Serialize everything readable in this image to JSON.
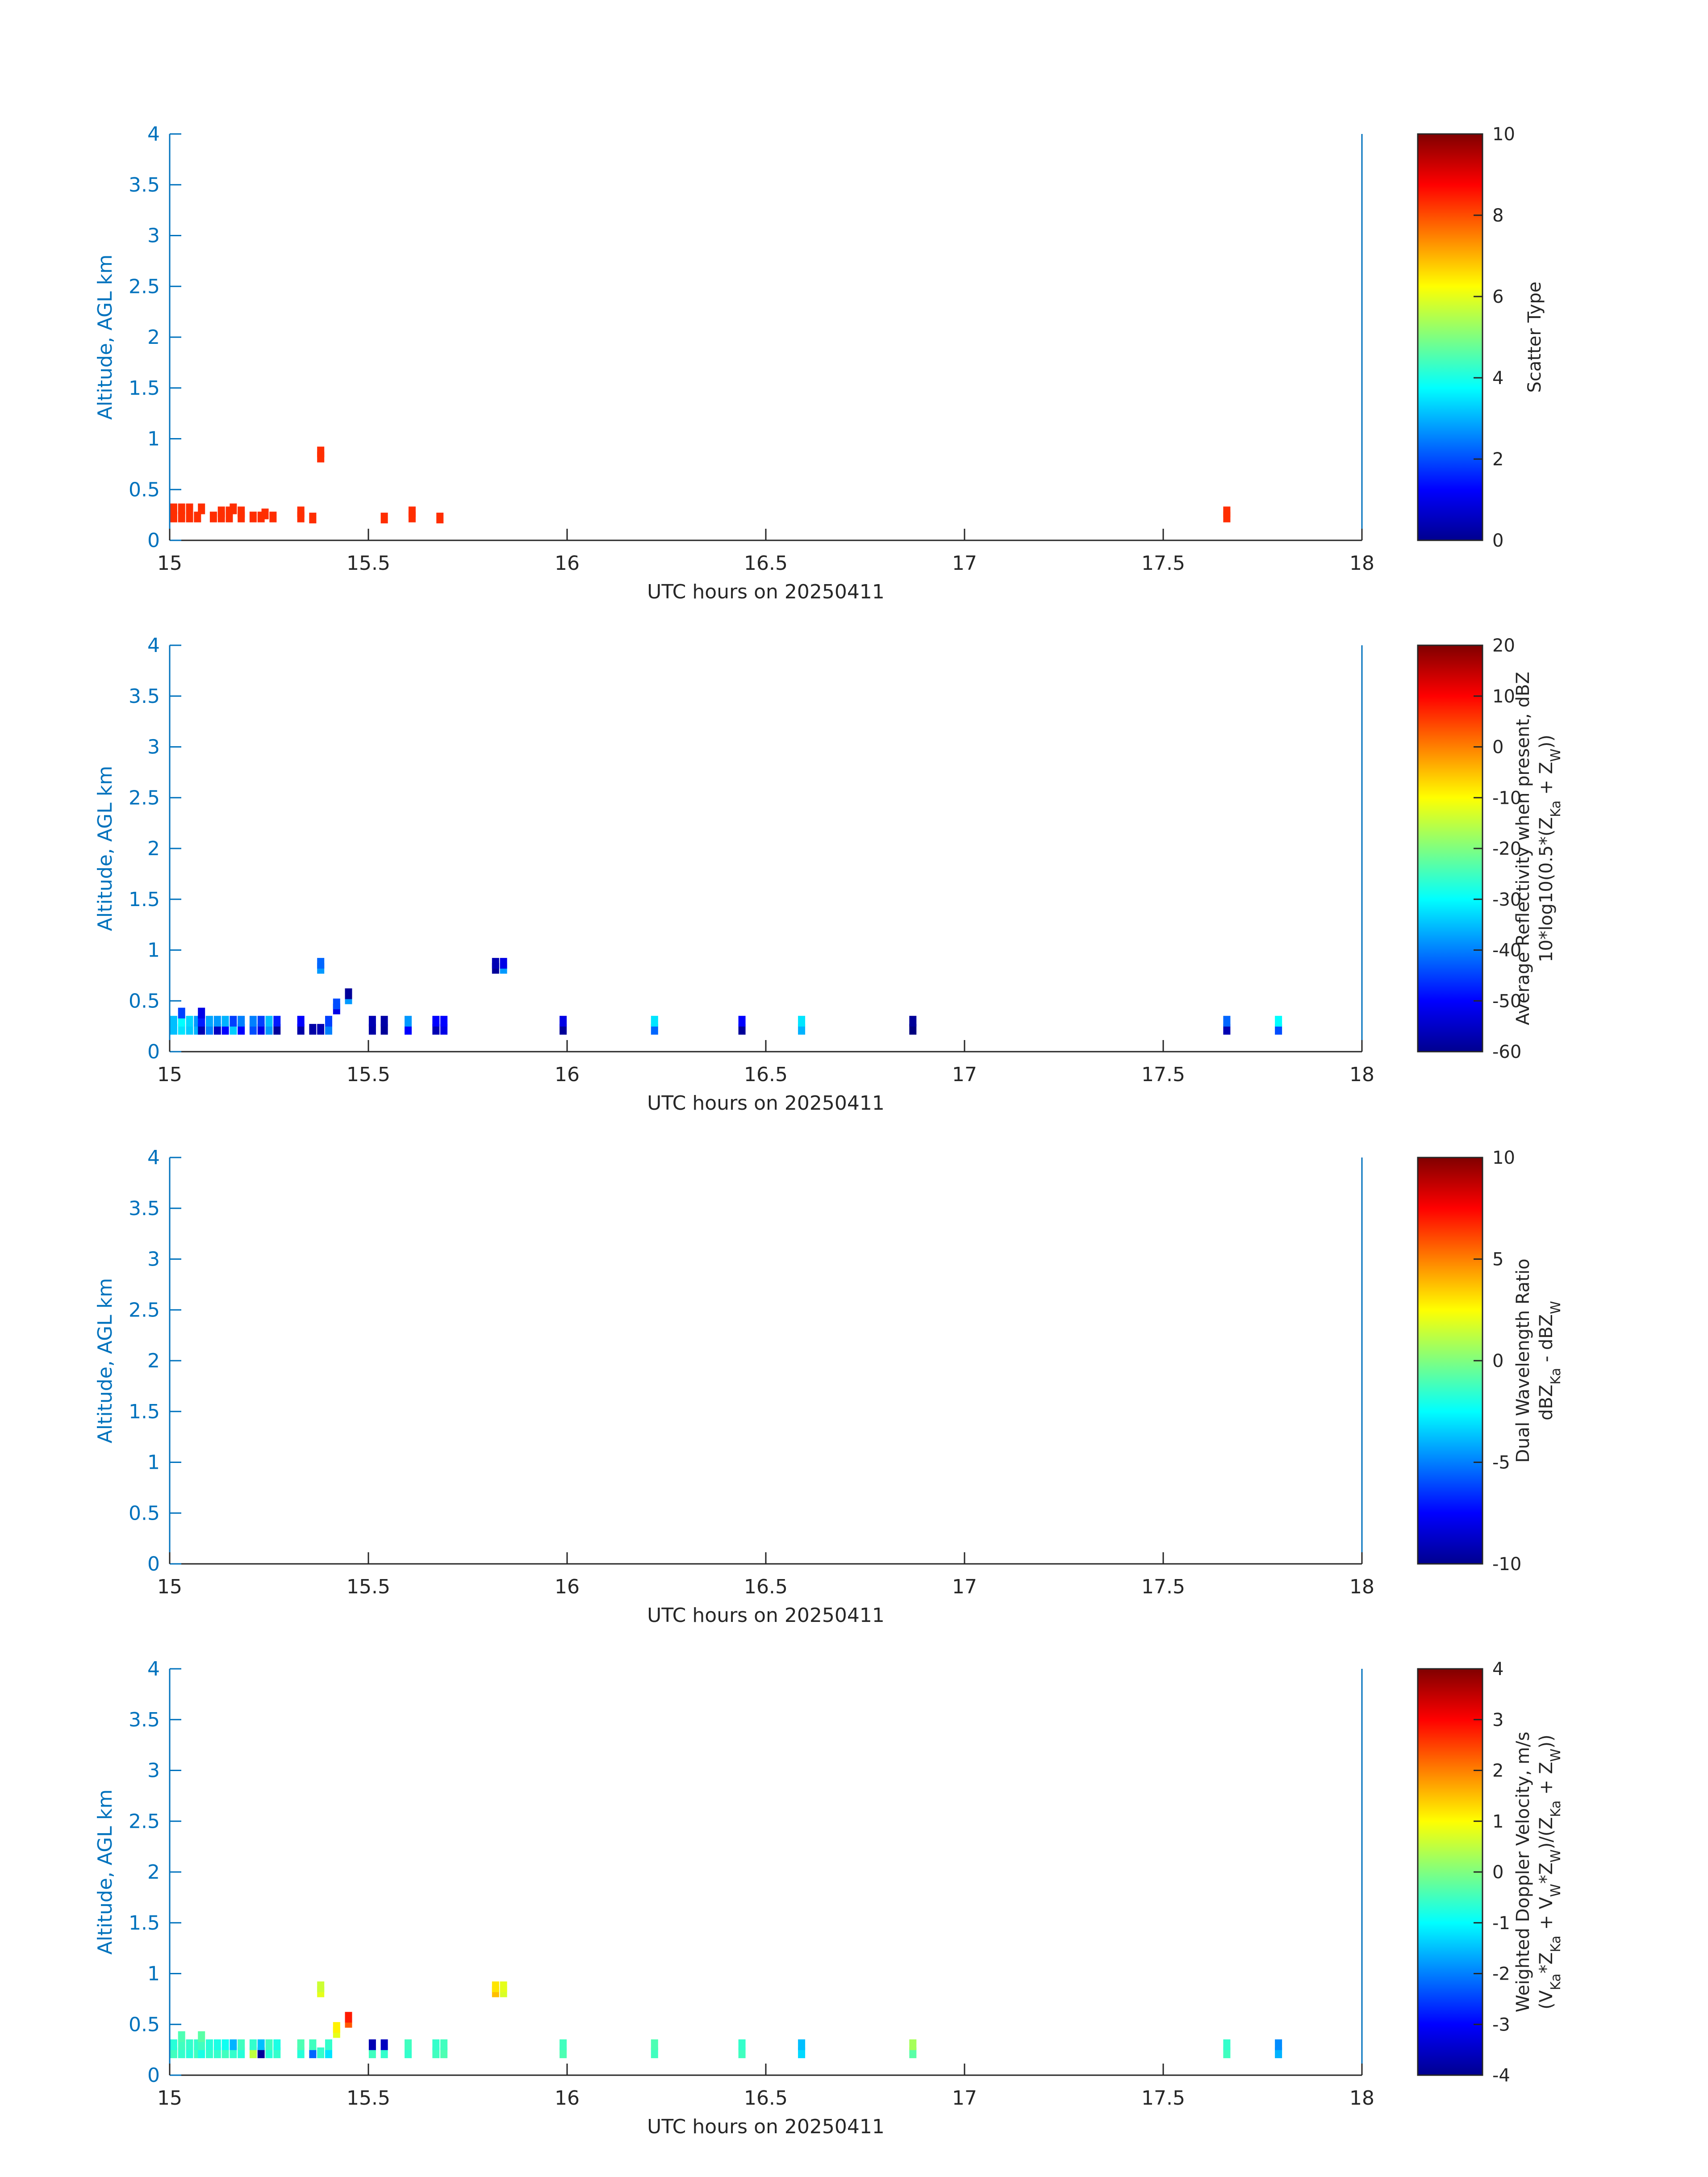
{
  "chart_data": [
    {
      "type": "heatmap",
      "xlabel": "UTC hours on 20250411",
      "ylabel": "Altitude, AGL km",
      "xlim": [
        15,
        18
      ],
      "ylim": [
        0,
        4
      ],
      "xticks": [
        "15",
        "15.5",
        "16",
        "16.5",
        "17",
        "17.5",
        "18"
      ],
      "yticks": [
        "0",
        "0.5",
        "1",
        "1.5",
        "2",
        "2.5",
        "3",
        "3.5",
        "4"
      ],
      "colorbar": {
        "label_lines": [
          "Scatter Type"
        ],
        "clim": [
          0,
          10
        ],
        "ticks": [
          "0",
          "2",
          "4",
          "6",
          "8",
          "10"
        ],
        "colormap": "jet"
      },
      "cells": [
        [
          15.01,
          0.23,
          8.3
        ],
        [
          15.01,
          0.31,
          8.3
        ],
        [
          15.03,
          0.23,
          8.3
        ],
        [
          15.03,
          0.31,
          8.3
        ],
        [
          15.05,
          0.23,
          8.3
        ],
        [
          15.05,
          0.31,
          8.3
        ],
        [
          15.07,
          0.23,
          8.3
        ],
        [
          15.08,
          0.31,
          8.3
        ],
        [
          15.11,
          0.23,
          8.3
        ],
        [
          15.13,
          0.23,
          8.3
        ],
        [
          15.13,
          0.28,
          8.3
        ],
        [
          15.15,
          0.23,
          8.3
        ],
        [
          15.15,
          0.28,
          8.3
        ],
        [
          15.16,
          0.31,
          8.3
        ],
        [
          15.18,
          0.23,
          8.3
        ],
        [
          15.18,
          0.28,
          8.3
        ],
        [
          15.21,
          0.23,
          8.3
        ],
        [
          15.23,
          0.23,
          8.3
        ],
        [
          15.24,
          0.26,
          8.3
        ],
        [
          15.26,
          0.23,
          8.3
        ],
        [
          15.33,
          0.23,
          8.3
        ],
        [
          15.33,
          0.28,
          8.3
        ],
        [
          15.36,
          0.22,
          8.3
        ],
        [
          15.38,
          0.82,
          8.3
        ],
        [
          15.38,
          0.87,
          8.3
        ],
        [
          15.54,
          0.22,
          8.3
        ],
        [
          15.61,
          0.23,
          8.3
        ],
        [
          15.61,
          0.28,
          8.3
        ],
        [
          15.68,
          0.22,
          8.3
        ],
        [
          17.66,
          0.23,
          8.3
        ],
        [
          17.66,
          0.28,
          8.3
        ]
      ]
    },
    {
      "type": "heatmap",
      "xlabel": "UTC hours on 20250411",
      "ylabel": "Altitude, AGL km",
      "xlim": [
        15,
        18
      ],
      "ylim": [
        0,
        4
      ],
      "xticks": [
        "15",
        "15.5",
        "16",
        "16.5",
        "17",
        "17.5",
        "18"
      ],
      "yticks": [
        "0",
        "0.5",
        "1",
        "1.5",
        "2",
        "2.5",
        "3",
        "3.5",
        "4"
      ],
      "colorbar": {
        "label_lines": [
          "Average Reflectivity when present, dBZ",
          "10*log10(0.5*(Z_Ka + Z_W))"
        ],
        "clim": [
          -60,
          20
        ],
        "ticks": [
          "-60",
          "-50",
          "-40",
          "-30",
          "-20",
          "-10",
          "0",
          "10",
          "20"
        ],
        "colormap": "jet"
      },
      "cells": [
        [
          15.01,
          0.22,
          -35
        ],
        [
          15.01,
          0.3,
          -35
        ],
        [
          15.03,
          0.22,
          -32
        ],
        [
          15.03,
          0.3,
          -30
        ],
        [
          15.03,
          0.38,
          -45
        ],
        [
          15.05,
          0.22,
          -34
        ],
        [
          15.05,
          0.3,
          -33
        ],
        [
          15.07,
          0.22,
          -36
        ],
        [
          15.07,
          0.3,
          -38
        ],
        [
          15.08,
          0.22,
          -56
        ],
        [
          15.08,
          0.3,
          -48
        ],
        [
          15.08,
          0.38,
          -52
        ],
        [
          15.1,
          0.22,
          -40
        ],
        [
          15.1,
          0.3,
          -37
        ],
        [
          15.12,
          0.22,
          -55
        ],
        [
          15.12,
          0.3,
          -38
        ],
        [
          15.14,
          0.22,
          -50
        ],
        [
          15.14,
          0.3,
          -36
        ],
        [
          15.16,
          0.22,
          -34
        ],
        [
          15.16,
          0.3,
          -45
        ],
        [
          15.18,
          0.22,
          -50
        ],
        [
          15.18,
          0.3,
          -40
        ],
        [
          15.21,
          0.22,
          -44
        ],
        [
          15.21,
          0.3,
          -40
        ],
        [
          15.23,
          0.22,
          -52
        ],
        [
          15.23,
          0.3,
          -45
        ],
        [
          15.25,
          0.22,
          -38
        ],
        [
          15.25,
          0.3,
          -35
        ],
        [
          15.27,
          0.22,
          -58
        ],
        [
          15.27,
          0.3,
          -48
        ],
        [
          15.33,
          0.22,
          -57
        ],
        [
          15.33,
          0.3,
          -50
        ],
        [
          15.36,
          0.22,
          -57
        ],
        [
          15.38,
          0.22,
          -56
        ],
        [
          15.38,
          0.82,
          -38
        ],
        [
          15.38,
          0.87,
          -42
        ],
        [
          15.4,
          0.22,
          -40
        ],
        [
          15.4,
          0.3,
          -45
        ],
        [
          15.42,
          0.42,
          -52
        ],
        [
          15.42,
          0.47,
          -44
        ],
        [
          15.45,
          0.52,
          -38
        ],
        [
          15.45,
          0.57,
          -58
        ],
        [
          15.51,
          0.22,
          -57
        ],
        [
          15.51,
          0.3,
          -56
        ],
        [
          15.54,
          0.22,
          -58
        ],
        [
          15.54,
          0.3,
          -57
        ],
        [
          15.6,
          0.22,
          -50
        ],
        [
          15.6,
          0.3,
          -38
        ],
        [
          15.67,
          0.22,
          -56
        ],
        [
          15.67,
          0.3,
          -50
        ],
        [
          15.69,
          0.22,
          -52
        ],
        [
          15.69,
          0.3,
          -50
        ],
        [
          15.82,
          0.82,
          -58
        ],
        [
          15.82,
          0.87,
          -56
        ],
        [
          15.84,
          0.82,
          -38
        ],
        [
          15.84,
          0.87,
          -52
        ],
        [
          15.99,
          0.22,
          -58
        ],
        [
          15.99,
          0.3,
          -52
        ],
        [
          16.22,
          0.22,
          -42
        ],
        [
          16.22,
          0.3,
          -32
        ],
        [
          16.44,
          0.22,
          -58
        ],
        [
          16.44,
          0.3,
          -50
        ],
        [
          16.59,
          0.22,
          -36
        ],
        [
          16.59,
          0.3,
          -32
        ],
        [
          16.87,
          0.22,
          -60
        ],
        [
          16.87,
          0.3,
          -58
        ],
        [
          17.66,
          0.22,
          -56
        ],
        [
          17.66,
          0.3,
          -42
        ],
        [
          17.79,
          0.22,
          -44
        ],
        [
          17.79,
          0.3,
          -30
        ]
      ]
    },
    {
      "type": "heatmap",
      "xlabel": "UTC hours on 20250411",
      "ylabel": "Altitude, AGL km",
      "xlim": [
        15,
        18
      ],
      "ylim": [
        0,
        4
      ],
      "xticks": [
        "15",
        "15.5",
        "16",
        "16.5",
        "17",
        "17.5",
        "18"
      ],
      "yticks": [
        "0",
        "0.5",
        "1",
        "1.5",
        "2",
        "2.5",
        "3",
        "3.5",
        "4"
      ],
      "colorbar": {
        "label_lines": [
          "Dual Wavelength Ratio",
          "dBZ_Ka - dBZ_W"
        ],
        "clim": [
          -10,
          10
        ],
        "ticks": [
          "-10",
          "-5",
          "0",
          "5",
          "10"
        ],
        "colormap": "jet"
      },
      "cells": []
    },
    {
      "type": "heatmap",
      "xlabel": "UTC hours on 20250411",
      "ylabel": "Altitude, AGL km",
      "xlim": [
        15,
        18
      ],
      "ylim": [
        0,
        4
      ],
      "xticks": [
        "15",
        "15.5",
        "16",
        "16.5",
        "17",
        "17.5",
        "18"
      ],
      "yticks": [
        "0",
        "0.5",
        "1",
        "1.5",
        "2",
        "2.5",
        "3",
        "3.5",
        "4"
      ],
      "colorbar": {
        "label_lines": [
          "Weighted Doppler Velocity, m/s",
          "(V_Ka*Z_Ka + V_W*Z_W)/(Z_Ka + Z_W))"
        ],
        "clim": [
          -4,
          4
        ],
        "ticks": [
          "-4",
          "-3",
          "-2",
          "-1",
          "0",
          "1",
          "2",
          "3",
          "4"
        ],
        "colormap": "jet"
      },
      "cells": [
        [
          15.01,
          0.22,
          -0.5
        ],
        [
          15.01,
          0.3,
          -0.7
        ],
        [
          15.03,
          0.22,
          -0.6
        ],
        [
          15.03,
          0.3,
          -0.5
        ],
        [
          15.03,
          0.38,
          -0.4
        ],
        [
          15.05,
          0.22,
          -0.7
        ],
        [
          15.05,
          0.3,
          -0.6
        ],
        [
          15.07,
          0.22,
          -0.5
        ],
        [
          15.07,
          0.3,
          -0.6
        ],
        [
          15.08,
          0.22,
          -0.8
        ],
        [
          15.08,
          0.3,
          -0.5
        ],
        [
          15.08,
          0.38,
          -0.3
        ],
        [
          15.1,
          0.22,
          -0.6
        ],
        [
          15.1,
          0.3,
          -0.7
        ],
        [
          15.12,
          0.22,
          -0.6
        ],
        [
          15.12,
          0.3,
          -0.8
        ],
        [
          15.14,
          0.22,
          -0.5
        ],
        [
          15.14,
          0.3,
          -0.9
        ],
        [
          15.16,
          0.22,
          -0.6
        ],
        [
          15.16,
          0.3,
          -1.6
        ],
        [
          15.18,
          0.22,
          -0.7
        ],
        [
          15.18,
          0.3,
          -0.5
        ],
        [
          15.21,
          0.22,
          0.5
        ],
        [
          15.21,
          0.3,
          -0.6
        ],
        [
          15.23,
          0.22,
          -3.8
        ],
        [
          15.23,
          0.3,
          -1.5
        ],
        [
          15.25,
          0.22,
          -0.7
        ],
        [
          15.25,
          0.3,
          -0.5
        ],
        [
          15.27,
          0.22,
          -0.6
        ],
        [
          15.27,
          0.3,
          -0.8
        ],
        [
          15.33,
          0.22,
          -0.7
        ],
        [
          15.33,
          0.3,
          -0.4
        ],
        [
          15.36,
          0.22,
          -2.2
        ],
        [
          15.36,
          0.3,
          -0.5
        ],
        [
          15.38,
          0.22,
          -0.6
        ],
        [
          15.38,
          0.82,
          0.8
        ],
        [
          15.38,
          0.87,
          0.6
        ],
        [
          15.4,
          0.22,
          -1.2
        ],
        [
          15.4,
          0.3,
          -0.6
        ],
        [
          15.42,
          0.42,
          0.8
        ],
        [
          15.42,
          0.47,
          1.1
        ],
        [
          15.45,
          0.52,
          2.3
        ],
        [
          15.45,
          0.57,
          2.8
        ],
        [
          15.51,
          0.22,
          -0.5
        ],
        [
          15.51,
          0.3,
          -3.6
        ],
        [
          15.54,
          0.22,
          -0.6
        ],
        [
          15.54,
          0.3,
          -3.5
        ],
        [
          15.6,
          0.22,
          -0.6
        ],
        [
          15.6,
          0.3,
          -0.5
        ],
        [
          15.67,
          0.22,
          -0.5
        ],
        [
          15.67,
          0.3,
          -0.6
        ],
        [
          15.69,
          0.22,
          -0.4
        ],
        [
          15.69,
          0.3,
          -0.5
        ],
        [
          15.82,
          0.82,
          1.5
        ],
        [
          15.82,
          0.87,
          1.2
        ],
        [
          15.84,
          0.82,
          0.7
        ],
        [
          15.84,
          0.87,
          0.8
        ],
        [
          15.99,
          0.22,
          -0.4
        ],
        [
          15.99,
          0.3,
          -0.5
        ],
        [
          16.22,
          0.22,
          -0.5
        ],
        [
          16.22,
          0.3,
          -0.4
        ],
        [
          16.44,
          0.22,
          -0.5
        ],
        [
          16.44,
          0.3,
          -0.6
        ],
        [
          16.59,
          0.22,
          -1.3
        ],
        [
          16.59,
          0.3,
          -1.5
        ],
        [
          16.87,
          0.22,
          -0.3
        ],
        [
          16.87,
          0.3,
          0.3
        ],
        [
          17.66,
          0.22,
          -0.5
        ],
        [
          17.66,
          0.3,
          -0.6
        ],
        [
          17.79,
          0.22,
          -1.6
        ],
        [
          17.79,
          0.3,
          -1.9
        ]
      ]
    }
  ]
}
